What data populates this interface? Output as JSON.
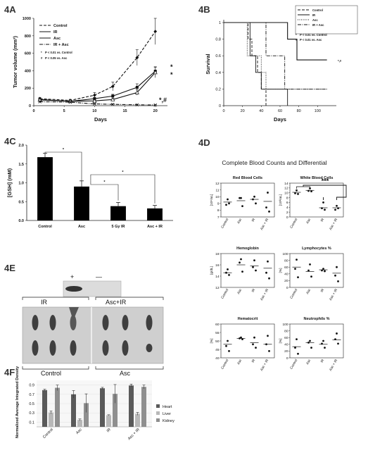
{
  "panels": {
    "a": "4A",
    "b": "4B",
    "c": "4C",
    "d": "4D",
    "e": "4E",
    "f": "4F"
  },
  "chart_data": [
    {
      "id": "4A",
      "type": "line",
      "xlabel": "Days",
      "ylabel": "Tumor volume (mm³)",
      "xlim": [
        0,
        22
      ],
      "ylim": [
        0,
        1000
      ],
      "xticks": [
        0,
        5,
        10,
        15,
        20
      ],
      "yticks": [
        0,
        200,
        400,
        600,
        800,
        1000
      ],
      "legend_position": "top-left",
      "x": [
        1,
        6,
        10,
        13,
        17,
        20
      ],
      "series": [
        {
          "name": "Control",
          "style": "dashed",
          "marker": "diamond",
          "values": [
            80,
            60,
            120,
            220,
            550,
            850
          ],
          "errors": [
            15,
            12,
            30,
            50,
            90,
            150
          ]
        },
        {
          "name": "IR",
          "style": "solid",
          "marker": "square",
          "values": [
            70,
            50,
            80,
            110,
            210,
            395
          ],
          "errors": [
            12,
            10,
            15,
            20,
            40,
            50
          ]
        },
        {
          "name": "Asc",
          "style": "solid",
          "marker": "triangle",
          "values": [
            65,
            50,
            55,
            70,
            150,
            380
          ],
          "errors": [
            12,
            10,
            10,
            15,
            30,
            60
          ]
        },
        {
          "name": "IR + Asc",
          "style": "dashdot",
          "marker": "x",
          "values": [
            45,
            40,
            20,
            15,
            10,
            8
          ],
          "errors": [
            8,
            6,
            5,
            4,
            3,
            2
          ]
        }
      ],
      "significance_legend": [
        {
          "symbol": "*",
          "text": "P < 0.01 vs. Control"
        },
        {
          "symbol": "#",
          "text": "P < 0.05 vs. Asc"
        }
      ],
      "annotations": [
        "*",
        "*",
        "*,#"
      ]
    },
    {
      "id": "4B",
      "type": "line",
      "xlabel": "Days",
      "ylabel": "Survival",
      "xlim": [
        0,
        120
      ],
      "ylim": [
        0,
        1
      ],
      "xticks": [
        0,
        20,
        40,
        60,
        80,
        100
      ],
      "yticks": [
        0,
        0.2,
        0.4,
        0.6,
        0.8,
        1
      ],
      "ytick_labels": [
        "0",
        "0.2",
        "0.4",
        "0.6",
        "0.8",
        "1"
      ],
      "legend_position": "top-right",
      "series": [
        {
          "name": "Control",
          "style": "dashed",
          "steps": [
            [
              0,
              1
            ],
            [
              26,
              1
            ],
            [
              26,
              0.8
            ],
            [
              30,
              0.8
            ],
            [
              30,
              0.6
            ],
            [
              36,
              0.6
            ],
            [
              36,
              0.4
            ],
            [
              40,
              0.4
            ],
            [
              40,
              0.2
            ],
            [
              45,
              0.2
            ],
            [
              45,
              0
            ]
          ]
        },
        {
          "name": "IR",
          "style": "solid",
          "steps": [
            [
              0,
              1
            ],
            [
              28,
              1
            ],
            [
              28,
              0.6
            ],
            [
              34,
              0.6
            ],
            [
              34,
              0.4
            ],
            [
              40,
              0.4
            ],
            [
              40,
              0.2
            ],
            [
              68,
              0.2
            ],
            [
              68,
              0
            ]
          ]
        },
        {
          "name": "Asc",
          "style": "dotted",
          "steps": [
            [
              0,
              1
            ],
            [
              25,
              1
            ],
            [
              25,
              0.6
            ],
            [
              40,
              0.6
            ],
            [
              40,
              0.4
            ],
            [
              45,
              0.4
            ],
            [
              45,
              0.2
            ],
            [
              110,
              0.2
            ]
          ]
        },
        {
          "name": "IR + Asc",
          "style": "dashdot",
          "steps": [
            [
              0,
              1
            ],
            [
              45,
              1
            ],
            [
              45,
              0.6
            ],
            [
              65,
              0.6
            ],
            [
              65,
              0.2
            ],
            [
              110,
              0.2
            ]
          ]
        },
        {
          "name": "IR + Asc",
          "style": "solid",
          "steps": [
            [
              0,
              1
            ],
            [
              68,
              1
            ],
            [
              68,
              0.8
            ],
            [
              78,
              0.8
            ],
            [
              78,
              0.55
            ],
            [
              110,
              0.55
            ]
          ]
        }
      ],
      "significance_legend": [
        {
          "symbol": "*",
          "text": "P < 0.01 vs. Control"
        },
        {
          "symbol": "#",
          "text": "P < 0.01 vs. Asc"
        }
      ],
      "annotations": [
        "*,#"
      ]
    },
    {
      "id": "4C",
      "type": "bar",
      "ylabel": "[GSH] (mM)",
      "ylim": [
        0,
        2.0
      ],
      "yticks": [
        0,
        0.5,
        1.0,
        1.5,
        2.0
      ],
      "ytick_labels": [
        "0.0",
        "0.5",
        "1.0",
        "1.5",
        "2.0"
      ],
      "categories": [
        "Control",
        "Asc",
        "5 Gy IR",
        "Asc + IR"
      ],
      "values": [
        1.68,
        0.9,
        0.38,
        0.32
      ],
      "errors": [
        0.1,
        0.15,
        0.1,
        0.08
      ],
      "significance": [
        {
          "from": 0,
          "to": 1,
          "label": "*"
        },
        {
          "from": 1,
          "to": 2,
          "label": "*"
        },
        {
          "from": 1,
          "to": 3,
          "label": "*"
        }
      ]
    },
    {
      "id": "4D",
      "type": "scatter",
      "title": "Complete Blood Counts and Differential",
      "categories": [
        "Control",
        "Asc",
        "IR",
        "Asc + IR"
      ],
      "subplots": [
        {
          "title": "Red Blood Cells",
          "ylabel": "[10⁶/uL]",
          "ylim": [
            7,
            12
          ],
          "yticks": [
            7,
            8,
            9,
            10,
            11,
            12
          ],
          "points": [
            [
              9.6,
              8.8,
              9.0
            ],
            [
              9.8,
              9.8,
              8.6
            ],
            [
              10.0,
              9.6,
              9.0
            ],
            [
              10.6,
              8.4,
              7.8
            ]
          ],
          "means": [
            9.2,
            9.4,
            9.6,
            9.3
          ]
        },
        {
          "title": "White Blood Cells",
          "ylabel": "[10³/uL]",
          "ylim": [
            0,
            14
          ],
          "yticks": [
            0,
            2,
            4,
            6,
            8,
            10,
            12,
            14
          ],
          "points": [
            [
              11.0,
              9.8,
              9.5
            ],
            [
              11.8,
              10.8,
              10.6
            ],
            [
              6.0,
              3.6,
              3.0
            ],
            [
              4.6,
              3.0,
              3.6
            ]
          ],
          "means": [
            10.2,
            11.0,
            3.8,
            3.8
          ],
          "significance": "***"
        },
        {
          "title": "Hemoglobin",
          "ylabel": "[g/dL]",
          "ylim": [
            12,
            18
          ],
          "yticks": [
            12,
            14,
            16,
            18
          ],
          "points": [
            [
              15.2,
              14.6,
              14.2
            ],
            [
              17.0,
              16.4,
              14.8
            ],
            [
              16.8,
              15.6,
              15.0
            ],
            [
              16.6,
              14.6,
              13.6
            ]
          ],
          "means": [
            14.6,
            16.0,
            15.8,
            15.4
          ]
        },
        {
          "title": "Lymphocytes %",
          "ylabel": "[%]",
          "ylim": [
            0,
            100
          ],
          "yticks": [
            0,
            20,
            40,
            60,
            80,
            100
          ],
          "points": [
            [
              82,
              55,
              30
            ],
            [
              68,
              50,
              32
            ],
            [
              55,
              50,
              48
            ],
            [
              60,
              35,
              18
            ]
          ],
          "means": [
            60,
            47,
            52,
            42
          ]
        },
        {
          "title": "Hematocrit",
          "ylabel": "[%]",
          "ylim": [
            40,
            60
          ],
          "yticks": [
            40,
            45,
            50,
            55,
            60
          ],
          "points": [
            [
              50,
              47,
              44
            ],
            [
              52,
              51.5,
              51
            ],
            [
              52,
              48,
              46
            ],
            [
              53,
              48,
              44
            ]
          ],
          "means": [
            48,
            51.5,
            49,
            48
          ]
        },
        {
          "title": "Neutrophils %",
          "ylabel": "[%]",
          "ylim": [
            0,
            100
          ],
          "yticks": [
            0,
            20,
            40,
            60,
            80,
            100
          ],
          "points": [
            [
              55,
              30,
              12
            ],
            [
              50,
              45,
              30
            ],
            [
              50,
              42,
              30
            ],
            [
              72,
              55,
              42
            ]
          ],
          "means": [
            33,
            45,
            40,
            53
          ]
        }
      ]
    },
    {
      "id": "4F",
      "type": "bar",
      "ylabel": "Normalized Average Integrated Density",
      "ylim": [
        0,
        1.0
      ],
      "yticks": [
        0.1,
        0.3,
        0.5,
        0.7,
        0.9
      ],
      "categories": [
        "Control",
        "Asc",
        "IR",
        "Asc + IR"
      ],
      "legend_position": "right",
      "series": [
        {
          "name": "Heart",
          "color": "#5a5a5a",
          "values": [
            0.79,
            0.7,
            0.83,
            0.89
          ],
          "errors": [
            0.02,
            0.08,
            0.02,
            0.03
          ]
        },
        {
          "name": "Liver",
          "color": "#b8b8b8",
          "values": [
            0.31,
            0.15,
            0.25,
            0.28
          ],
          "errors": [
            0.03,
            0.02,
            0.01,
            0.03
          ]
        },
        {
          "name": "Kidney",
          "color": "#8f8f8f",
          "values": [
            0.84,
            0.51,
            0.71,
            0.86
          ],
          "errors": [
            0.06,
            0.2,
            0.2,
            0.04
          ]
        }
      ]
    }
  ],
  "blot": {
    "plus": "+",
    "minus": "—",
    "top_labels": [
      "IR",
      "Asc+IR"
    ],
    "bottom_labels": [
      "Control",
      "Asc"
    ]
  }
}
